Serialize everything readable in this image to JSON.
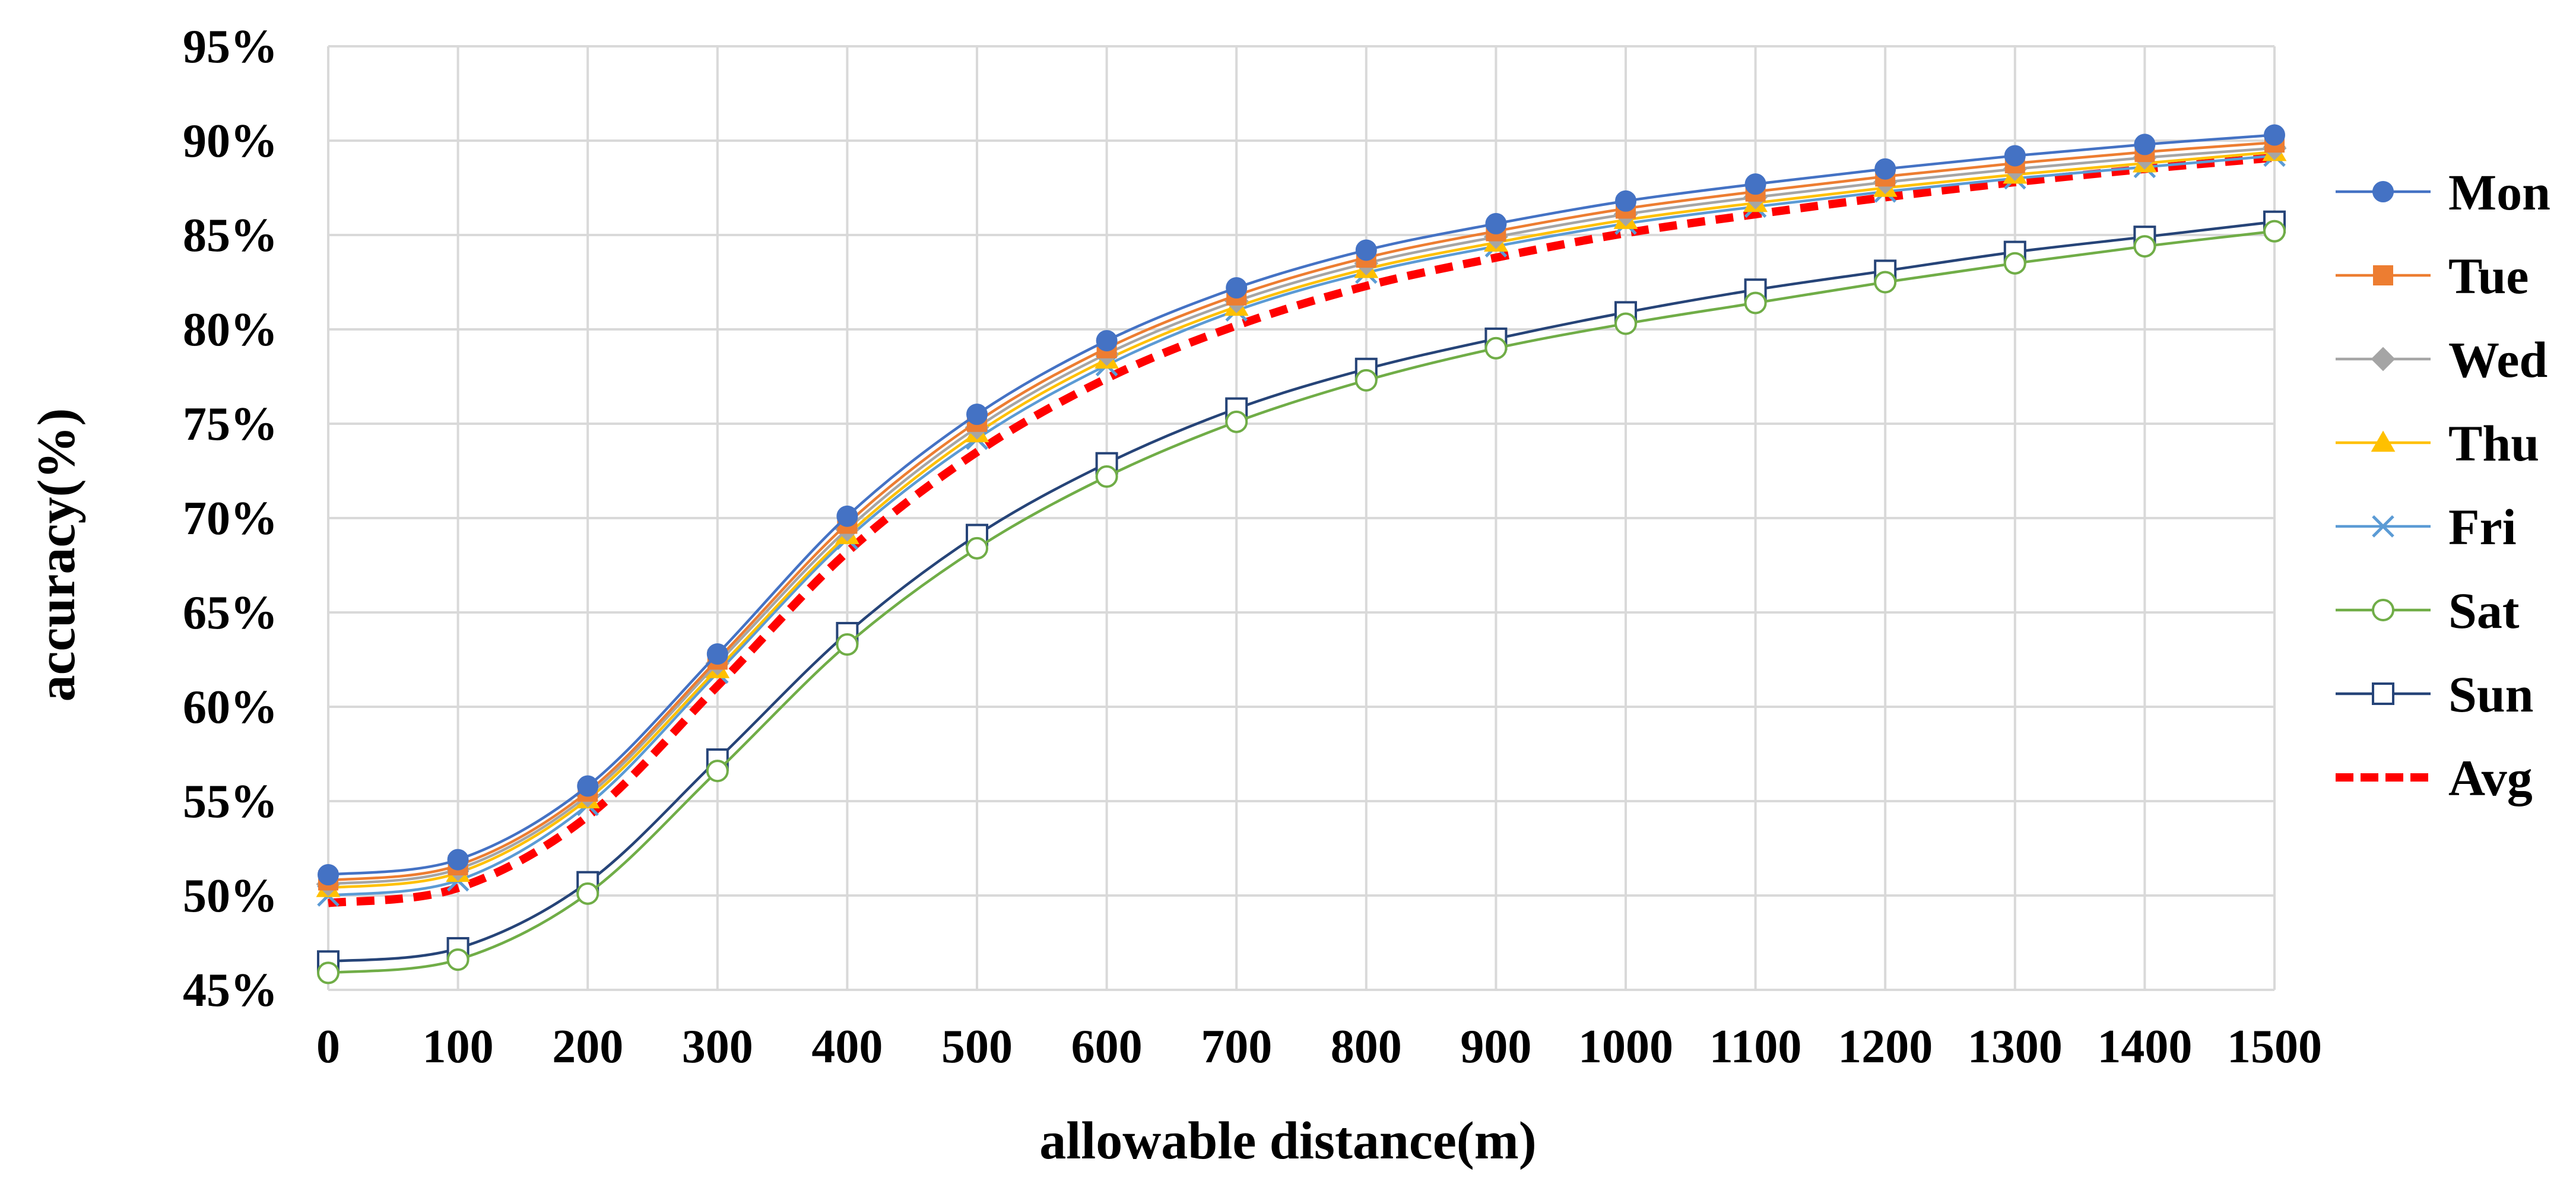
{
  "chart_data": {
    "type": "line",
    "title": "",
    "xlabel": "allowable distance(m)",
    "ylabel": "accuracy(%)",
    "x": [
      0,
      100,
      200,
      300,
      400,
      500,
      600,
      700,
      800,
      900,
      1000,
      1100,
      1200,
      1300,
      1400,
      1500
    ],
    "x_tick_labels": [
      "0",
      "100",
      "200",
      "300",
      "400",
      "500",
      "600",
      "700",
      "800",
      "900",
      "1000",
      "1100",
      "1200",
      "1300",
      "1400",
      "1500"
    ],
    "ylim": [
      45,
      95
    ],
    "y_tick_values": [
      45,
      50,
      55,
      60,
      65,
      70,
      75,
      80,
      85,
      90,
      95
    ],
    "y_tick_labels": [
      "45%",
      "50%",
      "55%",
      "60%",
      "65%",
      "70%",
      "75%",
      "80%",
      "85%",
      "90%",
      "95%"
    ],
    "grid": true,
    "legend_position": "right",
    "series": [
      {
        "name": "Mon",
        "color": "#4472c4",
        "marker": "circle-filled",
        "dashed": false,
        "values": [
          51.1,
          51.9,
          55.8,
          62.8,
          70.1,
          75.5,
          79.4,
          82.2,
          84.2,
          85.6,
          86.8,
          87.7,
          88.5,
          89.2,
          89.8,
          90.3
        ]
      },
      {
        "name": "Tue",
        "color": "#ed7d31",
        "marker": "square-filled",
        "dashed": false,
        "values": [
          50.8,
          51.6,
          55.5,
          62.5,
          69.7,
          75.1,
          79.0,
          81.8,
          83.8,
          85.2,
          86.4,
          87.3,
          88.1,
          88.8,
          89.4,
          89.9
        ]
      },
      {
        "name": "Wed",
        "color": "#a5a5a5",
        "marker": "diamond-filled",
        "dashed": false,
        "values": [
          50.6,
          51.4,
          55.3,
          62.3,
          69.4,
          74.8,
          78.7,
          81.5,
          83.5,
          84.9,
          86.1,
          87.0,
          87.8,
          88.5,
          89.1,
          89.6
        ]
      },
      {
        "name": "Thu",
        "color": "#ffc000",
        "marker": "triangle-filled",
        "dashed": false,
        "values": [
          50.4,
          51.2,
          55.1,
          62.0,
          69.1,
          74.5,
          78.4,
          81.2,
          83.2,
          84.6,
          85.8,
          86.7,
          87.5,
          88.2,
          88.8,
          89.4
        ]
      },
      {
        "name": "Fri",
        "color": "#5b9bd5",
        "marker": "x",
        "dashed": false,
        "values": [
          50.0,
          50.8,
          54.8,
          61.8,
          68.9,
          74.2,
          78.1,
          81.0,
          83.0,
          84.4,
          85.6,
          86.5,
          87.3,
          88.0,
          88.6,
          89.2
        ]
      },
      {
        "name": "Sat",
        "color": "#70ad47",
        "marker": "circle-open",
        "dashed": false,
        "values": [
          45.9,
          46.6,
          50.1,
          56.6,
          63.3,
          68.4,
          72.2,
          75.1,
          77.3,
          79.0,
          80.3,
          81.4,
          82.5,
          83.5,
          84.4,
          85.2
        ]
      },
      {
        "name": "Sun",
        "color": "#264478",
        "marker": "square-open",
        "dashed": false,
        "values": [
          46.5,
          47.2,
          50.7,
          57.2,
          63.9,
          69.1,
          72.9,
          75.8,
          77.9,
          79.5,
          80.9,
          82.1,
          83.1,
          84.1,
          84.9,
          85.7
        ]
      },
      {
        "name": "Avg",
        "color": "#ff0000",
        "marker": "none",
        "dashed": true,
        "values": [
          49.6,
          50.4,
          54.2,
          61.1,
          68.2,
          73.5,
          77.4,
          80.2,
          82.3,
          83.8,
          85.1,
          86.1,
          87.0,
          87.8,
          88.5,
          89.1
        ]
      }
    ]
  }
}
